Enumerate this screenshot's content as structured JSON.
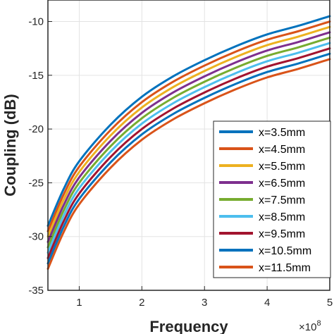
{
  "chart_data": {
    "type": "line",
    "title": "",
    "xlabel": "Frequency",
    "ylabel": "Coupling (dB)",
    "x_exponent_base": "×10",
    "x_exponent_power": "8",
    "xlim": [
      0.5,
      5
    ],
    "ylim": [
      -35,
      -8
    ],
    "xticks": [
      1,
      2,
      3,
      4,
      5
    ],
    "xtick_labels": [
      "1",
      "2",
      "3",
      "4",
      "5"
    ],
    "yticks": [
      -35,
      -30,
      -25,
      -20,
      -15,
      -10
    ],
    "ytick_labels": [
      "-35",
      "-30",
      "-25",
      "-20",
      "-15",
      "-10"
    ],
    "grid": true,
    "legend_position": "bottom-right",
    "x": [
      0.5,
      0.75,
      1,
      1.5,
      2,
      2.5,
      3,
      3.5,
      4,
      4.5,
      5
    ],
    "series": [
      {
        "name": "x=3.5mm",
        "color": "#0072BD",
        "values": [
          -29.0,
          -25.6,
          -23.0,
          -19.6,
          -17.0,
          -15.1,
          -13.6,
          -12.3,
          -11.2,
          -10.4,
          -9.5
        ]
      },
      {
        "name": "x=4.5mm",
        "color": "#D95319",
        "values": [
          -29.5,
          -26.1,
          -23.5,
          -20.1,
          -17.5,
          -15.6,
          -14.1,
          -12.8,
          -11.7,
          -10.9,
          -10.0
        ]
      },
      {
        "name": "x=5.5mm",
        "color": "#EDB120",
        "values": [
          -30.0,
          -26.6,
          -24.0,
          -20.6,
          -18.0,
          -16.1,
          -14.6,
          -13.3,
          -12.2,
          -11.4,
          -10.5
        ]
      },
      {
        "name": "x=6.5mm",
        "color": "#7E2F8E",
        "values": [
          -30.5,
          -27.1,
          -24.5,
          -21.1,
          -18.5,
          -16.6,
          -15.1,
          -13.8,
          -12.7,
          -11.9,
          -11.0
        ]
      },
      {
        "name": "x=7.5mm",
        "color": "#77AC30",
        "values": [
          -31.0,
          -27.6,
          -25.0,
          -21.6,
          -19.0,
          -17.1,
          -15.6,
          -14.3,
          -13.2,
          -12.4,
          -11.5
        ]
      },
      {
        "name": "x=8.5mm",
        "color": "#4DBEEE",
        "values": [
          -31.5,
          -28.1,
          -25.5,
          -22.1,
          -19.5,
          -17.6,
          -16.1,
          -14.8,
          -13.7,
          -12.9,
          -12.0
        ]
      },
      {
        "name": "x=9.5mm",
        "color": "#A2142F",
        "values": [
          -32.0,
          -28.6,
          -26.0,
          -22.6,
          -20.0,
          -18.1,
          -16.6,
          -15.3,
          -14.2,
          -13.4,
          -12.5
        ]
      },
      {
        "name": "x=10.5mm",
        "color": "#0072BD",
        "values": [
          -32.5,
          -29.1,
          -26.5,
          -23.1,
          -20.5,
          -18.6,
          -17.1,
          -15.8,
          -14.7,
          -13.9,
          -13.0
        ]
      },
      {
        "name": "x=11.5mm",
        "color": "#D95319",
        "values": [
          -33.0,
          -29.6,
          -27.0,
          -23.6,
          -21.0,
          -19.1,
          -17.6,
          -16.3,
          -15.2,
          -14.4,
          -13.5
        ]
      }
    ]
  }
}
